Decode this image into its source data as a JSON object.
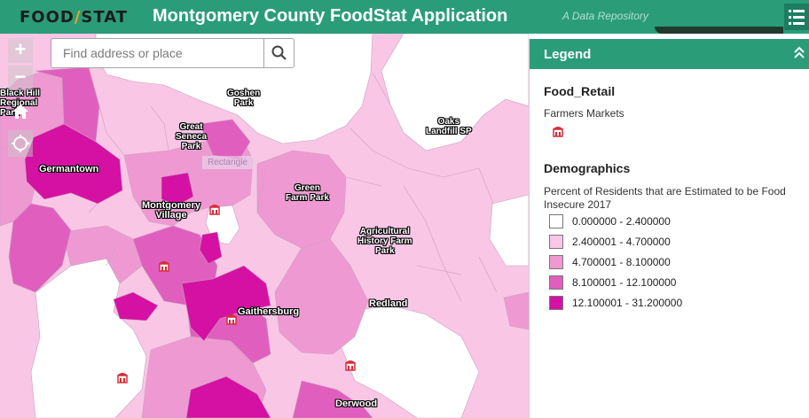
{
  "header": {
    "logo_left": "FOOD",
    "logo_right": "STAT",
    "title": "Montgomery County FoodStat Application",
    "subtitle": "A Data Repository",
    "menu_icon": "list-menu-icon"
  },
  "colors": {
    "header": "#2a9d78",
    "class_1": "#ffffff",
    "class_2": "#f9c6e6",
    "class_3": "#ef99d2",
    "class_4": "#e05fbe",
    "class_5": "#d411a3",
    "market_icon": "#d62c38"
  },
  "map": {
    "zoom_in": "+",
    "zoom_out": "−",
    "search_placeholder": "Find address or place",
    "rectangle_tool_label": "Rectangle",
    "places": {
      "goshen_1": "Goshen",
      "goshen_2": "Park",
      "oaks_1": "Oaks",
      "oaks_2": "Landfill SP",
      "great_1": "Great",
      "great_2": "Seneca",
      "great_3": "Park",
      "germantown": "Germantown",
      "green_1": "Green",
      "green_2": "Farm Park",
      "mv_1": "Montgomery",
      "mv_2": "Village",
      "ag_1": "Agricultural",
      "ag_2": "History Farm",
      "ag_3": "Park",
      "redland": "Redland",
      "gaithersburg": "Gaithersburg",
      "derwood": "Derwood",
      "blackhill_1": "Black Hill",
      "blackhill_2": "Regional",
      "blackhill_3": "Park"
    }
  },
  "legend": {
    "title": "Legend",
    "food_retail_title": "Food_Retail",
    "farmers_markets": "Farmers Markets",
    "demographics_title": "Demographics",
    "demographics_desc_1": "Percent of Residents that are Estimated to be Food",
    "demographics_desc_2": "Insecure 2017",
    "classes": [
      "0.000000 - 2.400000",
      "2.400001 - 4.700000",
      "4.700001 - 8.100000",
      "8.100001 - 12.100000",
      "12.100001 - 31.200000"
    ]
  }
}
